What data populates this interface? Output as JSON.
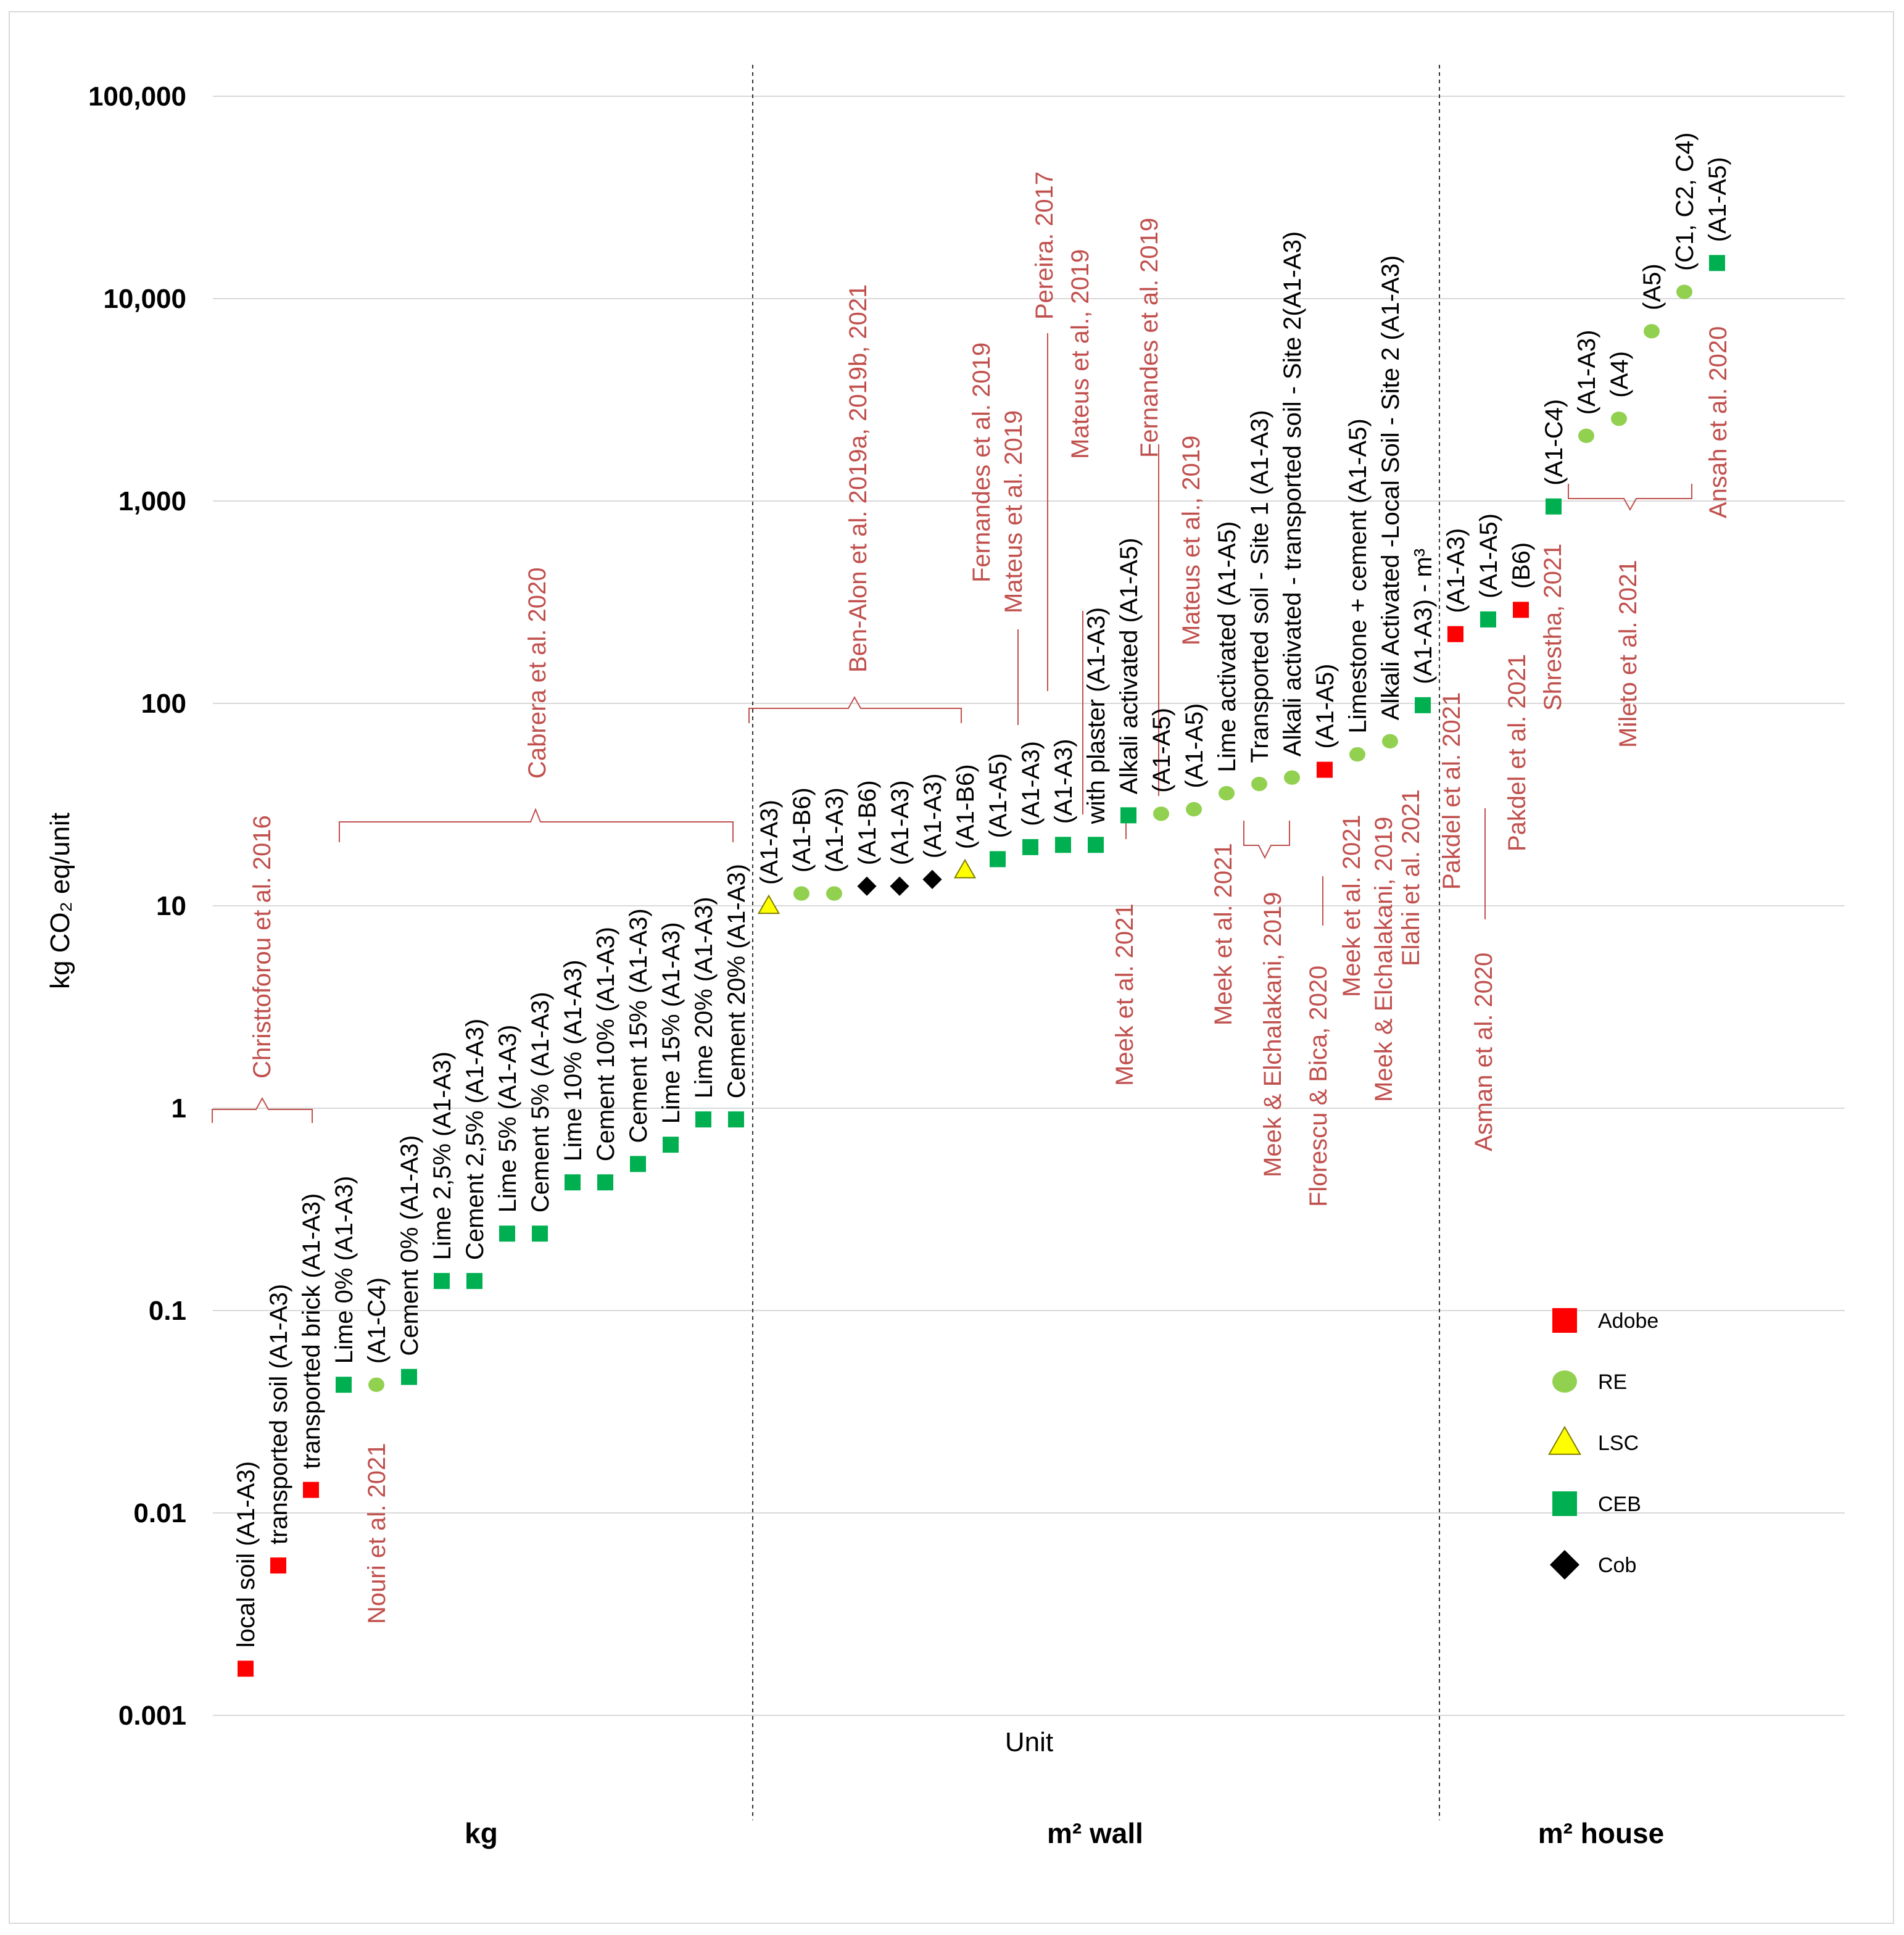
{
  "chart_data": {
    "type": "scatter",
    "ylabel": "kg CO₂ eq/unit",
    "xlabel": "Unit",
    "yscale": "log",
    "ylim": [
      0.001,
      100000
    ],
    "y_ticks": [
      "0.001",
      "0.01",
      "0.1",
      "1",
      "10",
      "100",
      "1,000",
      "10,000",
      "100,000"
    ],
    "groups": [
      "kg",
      "m² wall",
      "m² house"
    ],
    "legend": [
      {
        "name": "Adobe",
        "shape": "square",
        "color": "#ff0000"
      },
      {
        "name": "RE",
        "shape": "circle",
        "color": "#92d050"
      },
      {
        "name": "LSC",
        "shape": "triangle",
        "color": "#ffff00"
      },
      {
        "name": "CEB",
        "shape": "square",
        "color": "#00b050"
      },
      {
        "name": "Cob",
        "shape": "diamond",
        "color": "#000000"
      }
    ],
    "points": [
      {
        "label": "local soil (A1-A3)",
        "type": "Adobe",
        "value": 0.0017
      },
      {
        "label": "transported soil  (A1-A3)",
        "type": "Adobe",
        "value": 0.0055
      },
      {
        "label": "transported brick  (A1-A3)",
        "type": "Adobe",
        "value": 0.013
      },
      {
        "label": "Lime 0% (A1-A3)",
        "type": "CEB",
        "value": 0.043
      },
      {
        "label": "(A1-C4)",
        "type": "RE",
        "value": 0.043
      },
      {
        "label": "Cement 0% (A1-A3)",
        "type": "CEB",
        "value": 0.047
      },
      {
        "label": "Lime 2,5% (A1-A3)",
        "type": "CEB",
        "value": 0.14
      },
      {
        "label": "Cement 2,5% (A1-A3)",
        "type": "CEB",
        "value": 0.14
      },
      {
        "label": "Lime 5% (A1-A3)",
        "type": "CEB",
        "value": 0.24
      },
      {
        "label": "Cement 5% (A1-A3)",
        "type": "CEB",
        "value": 0.24
      },
      {
        "label": "Lime 10% (A1-A3)",
        "type": "CEB",
        "value": 0.43
      },
      {
        "label": "Cement 10% (A1-A3)",
        "type": "CEB",
        "value": 0.43
      },
      {
        "label": "Cement 15% (A1-A3)",
        "type": "CEB",
        "value": 0.53
      },
      {
        "label": "Lime 15% (A1-A3)",
        "type": "CEB",
        "value": 0.66
      },
      {
        "label": "Lime 20% (A1-A3)",
        "type": "CEB",
        "value": 0.88
      },
      {
        "label": "Cement 20% (A1-A3)",
        "type": "CEB",
        "value": 0.88
      },
      {
        "label": "(A1-A3)",
        "type": "LSC",
        "value": 10
      },
      {
        "label": "(A1-B6)",
        "type": "RE",
        "value": 11.5
      },
      {
        "label": "(A1-A3)",
        "type": "RE",
        "value": 11.5
      },
      {
        "label": "(A1-B6)",
        "type": "Cob",
        "value": 12.5
      },
      {
        "label": "(A1-A3)",
        "type": "Cob",
        "value": 12.5
      },
      {
        "label": "(A1-A3)",
        "type": "Cob",
        "value": 13.5
      },
      {
        "label": "(A1-B6)",
        "type": "LSC",
        "value": 15
      },
      {
        "label": "(A1-A5)",
        "type": "CEB",
        "value": 17
      },
      {
        "label": "(A1-A3)",
        "type": "CEB",
        "value": 19.5
      },
      {
        "label": "(A1-A3)",
        "type": "CEB",
        "value": 20
      },
      {
        "label": "with plaster (A1-A3)",
        "type": "CEB",
        "value": 20
      },
      {
        "label": "Alkali activated (A1-A5)",
        "type": "CEB",
        "value": 28
      },
      {
        "label": "(A1-A5)",
        "type": "RE",
        "value": 28.5
      },
      {
        "label": "(A1-A5)",
        "type": "RE",
        "value": 30
      },
      {
        "label": "Lime activated (A1-A5)",
        "type": "RE",
        "value": 36
      },
      {
        "label": "Transported soil - Site 1 (A1-A3)",
        "type": "RE",
        "value": 40
      },
      {
        "label": "Alkali activated - transported soil -  Site 2(A1-A3)",
        "type": "RE",
        "value": 43
      },
      {
        "label": "(A1-A5)",
        "type": "Adobe",
        "value": 47
      },
      {
        "label": "Limestone + cement (A1-A5)",
        "type": "RE",
        "value": 56
      },
      {
        "label": "Alkali Activated -Local Soil - Site 2 (A1-A3)",
        "type": "RE",
        "value": 65
      },
      {
        "label": "(A1-A3) - m³",
        "type": "CEB",
        "value": 98
      },
      {
        "label": "(A1-A3)",
        "type": "Adobe",
        "value": 220
      },
      {
        "label": "(A1-A5)",
        "type": "CEB",
        "value": 260
      },
      {
        "label": "(B6)",
        "type": "Adobe",
        "value": 290
      },
      {
        "label": "(A1-C4)",
        "type": "CEB",
        "value": 940
      },
      {
        "label": "(A1-A3)",
        "type": "RE",
        "value": 2100
      },
      {
        "label": "(A4)",
        "type": "RE",
        "value": 2550
      },
      {
        "label": "(A5)",
        "type": "RE",
        "value": 6900
      },
      {
        "label": "(C1, C2, C4)",
        "type": "RE",
        "value": 10800
      },
      {
        "label": "(A1-A5)",
        "type": "CEB",
        "value": 15000
      }
    ],
    "references": [
      "Christtoforou  et al. 2016",
      "Nouri  et al. 2021",
      "Cabrera et al. 2020",
      "Ben-Alon et al. 2019a, 2019b, 2021",
      "Fernandes et al. 2019",
      "Mateus et al. 2019",
      "Pereira.  2017",
      "Mateus et al., 2019",
      "Meek et al. 2021",
      "Fernandes et al. 2019",
      "Mateus et al., 2019",
      "Meek et al. 2021",
      "Meek & Elchalakani, 2019",
      "Florescu & Bica, 2020",
      "Meek et al. 2021",
      "Meek & Elchalakani, 2019",
      "Elahi et al. 2021",
      "Pakdel et al. 2021",
      "Asman et al. 2020",
      "Pakdel et al. 2021",
      "Shrestha, 2021",
      "Mileto et al. 2021",
      "Ansah et al. 2020"
    ]
  }
}
